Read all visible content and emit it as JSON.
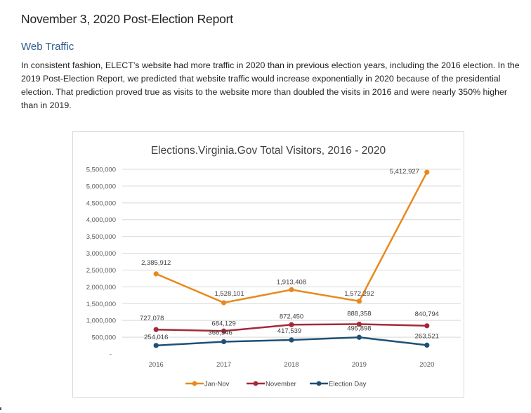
{
  "document": {
    "title": "November 3, 2020 Post-Election Report",
    "section_heading": "Web Traffic",
    "paragraph": "In consistent fashion, ELECT’s website had more traffic in 2020 than in previous election years, including the 2016 election. In the 2019 Post-Election Report, we predicted that website traffic would increase exponentially in 2020 because of the presidential election. That prediction proved true as visits to the website more than doubled the visits in 2016 and were nearly 350% higher than in 2019."
  },
  "chart_data": {
    "type": "line",
    "title": "Elections.Virginia.Gov Total Visitors, 2016 - 2020",
    "xlabel": "",
    "ylabel": "",
    "categories": [
      "2016",
      "2017",
      "2018",
      "2019",
      "2020"
    ],
    "ylim": [
      0,
      5500000
    ],
    "yticks": [
      500000,
      1000000,
      1500000,
      2000000,
      2500000,
      3000000,
      3500000,
      4000000,
      4500000,
      5000000,
      5500000
    ],
    "ytick_labels": [
      "500,000",
      "1,000,000",
      "1,500,000",
      "2,000,000",
      "2,500,000",
      "3,000,000",
      "3,500,000",
      "4,000,000",
      "4,500,000",
      "5,000,000",
      "5,500,000"
    ],
    "zero_tick_label": "-",
    "grid": true,
    "legend_position": "bottom",
    "series": [
      {
        "name": "Jan-Nov",
        "color": "#e8891e",
        "values": [
          2385912,
          1528101,
          1913408,
          1572292,
          5412927
        ],
        "labels": [
          "2,385,912",
          "1,528,101",
          "1,913,408",
          "1,572,292",
          "5,412,927"
        ]
      },
      {
        "name": "November",
        "color": "#a5293a",
        "values": [
          727078,
          684129,
          872450,
          888358,
          840794
        ],
        "labels": [
          "727,078",
          "684,129",
          "872,450",
          "888,358",
          "840,794"
        ]
      },
      {
        "name": "Election Day",
        "color": "#1f5075",
        "values": [
          254016,
          366346,
          417539,
          495898,
          263521
        ],
        "labels": [
          "254,016",
          "366,346",
          "417,539",
          "495,898",
          "263,521"
        ]
      }
    ]
  }
}
